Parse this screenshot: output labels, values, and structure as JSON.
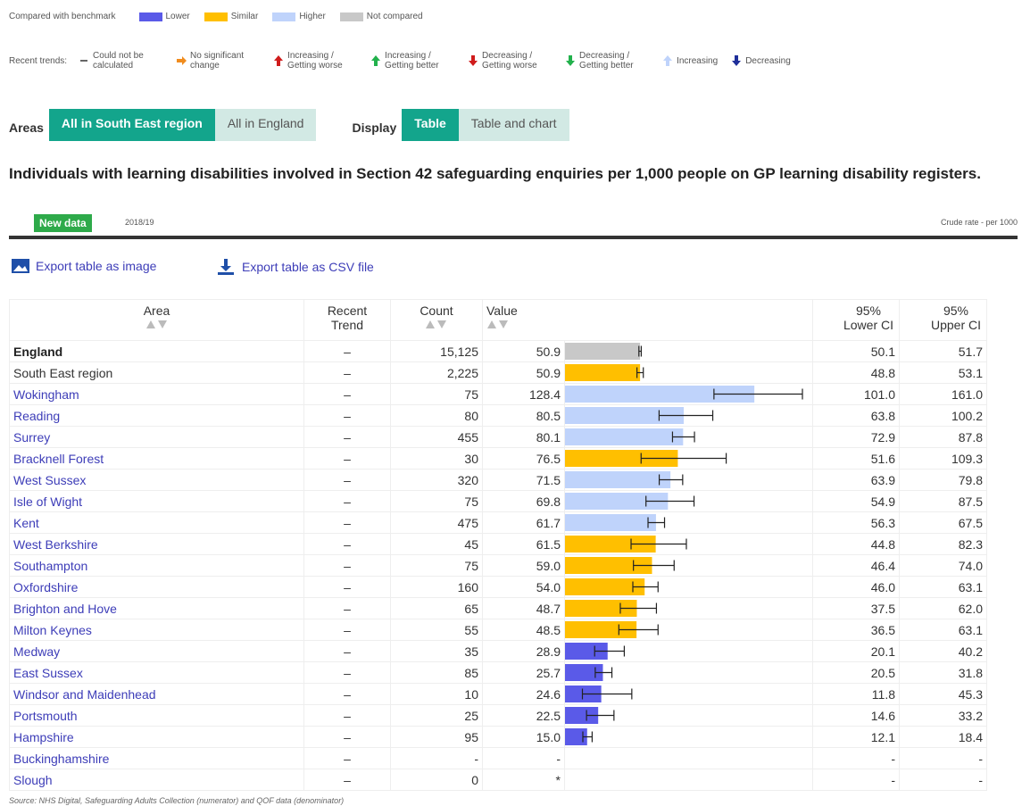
{
  "legend": {
    "benchmark_label": "Compared with benchmark",
    "benchmark": [
      {
        "label": "Lower",
        "color": "#5a5ae8"
      },
      {
        "label": "Similar",
        "color": "#ffbf00"
      },
      {
        "label": "Higher",
        "color": "#bfd3fb"
      },
      {
        "label": "Not compared",
        "color": "#c8c8c8"
      }
    ],
    "trends_label": "Recent trends:",
    "trends": [
      "Could not be calculated",
      "No significant change",
      "Increasing / Getting worse",
      "Increasing / Getting better",
      "Decreasing / Getting worse",
      "Decreasing / Getting better",
      "Increasing",
      "Decreasing"
    ]
  },
  "filters": {
    "areas_label": "Areas",
    "areas": [
      "All in South East region",
      "All in England"
    ],
    "display_label": "Display",
    "display": [
      "Table",
      "Table and chart"
    ]
  },
  "indicator": {
    "title": "Individuals with learning disabilities involved in Section 42 safeguarding enquiries per 1,000 people on GP learning disability registers.",
    "badge": "New data",
    "period": "2018/19",
    "unit": "Crude rate - per 1000"
  },
  "exports": [
    "Export table as image",
    "Export table as CSV file"
  ],
  "table": {
    "columns": [
      "Area",
      "Recent Trend",
      "Count",
      "Value",
      "95% Lower CI",
      "95% Upper CI"
    ],
    "rows": [
      {
        "area": "England",
        "trend": "–",
        "count": 15125,
        "count_label": "15,125",
        "value": 50.9,
        "lower": 50.1,
        "upper": 51.7,
        "benchmark": "Not compared"
      },
      {
        "area": "South East region",
        "trend": "–",
        "count": 2225,
        "count_label": "2,225",
        "value": 50.9,
        "lower": 48.8,
        "upper": 53.1,
        "benchmark": "Similar"
      },
      {
        "area": "Wokingham",
        "trend": "–",
        "count": 75,
        "value": 128.4,
        "lower": 101.0,
        "lower_label": "101.0",
        "upper": 161.0,
        "upper_label": "161.0",
        "benchmark": "Higher"
      },
      {
        "area": "Reading",
        "trend": "–",
        "count": 80,
        "value": 80.5,
        "lower": 63.8,
        "upper": 100.2,
        "benchmark": "Higher"
      },
      {
        "area": "Surrey",
        "trend": "–",
        "count": 455,
        "value": 80.1,
        "lower": 72.9,
        "upper": 87.8,
        "benchmark": "Higher"
      },
      {
        "area": "Bracknell Forest",
        "trend": "–",
        "count": 30,
        "value": 76.5,
        "lower": 51.6,
        "upper": 109.3,
        "benchmark": "Similar"
      },
      {
        "area": "West Sussex",
        "trend": "–",
        "count": 320,
        "value": 71.5,
        "lower": 63.9,
        "upper": 79.8,
        "benchmark": "Higher"
      },
      {
        "area": "Isle of Wight",
        "trend": "–",
        "count": 75,
        "value": 69.8,
        "lower": 54.9,
        "upper": 87.5,
        "benchmark": "Higher"
      },
      {
        "area": "Kent",
        "trend": "–",
        "count": 475,
        "value": 61.7,
        "lower": 56.3,
        "upper": 67.5,
        "benchmark": "Higher"
      },
      {
        "area": "West Berkshire",
        "trend": "–",
        "count": 45,
        "value": 61.5,
        "lower": 44.8,
        "upper": 82.3,
        "benchmark": "Similar"
      },
      {
        "area": "Southampton",
        "trend": "–",
        "count": 75,
        "value": 59.0,
        "value_label": "59.0",
        "lower": 46.4,
        "upper": 74.0,
        "upper_label": "74.0",
        "benchmark": "Similar"
      },
      {
        "area": "Oxfordshire",
        "trend": "–",
        "count": 160,
        "value": 54.0,
        "value_label": "54.0",
        "lower": 46.0,
        "lower_label": "46.0",
        "upper": 63.1,
        "benchmark": "Similar"
      },
      {
        "area": "Brighton and Hove",
        "trend": "–",
        "count": 65,
        "value": 48.7,
        "lower": 37.5,
        "upper": 62.0,
        "upper_label": "62.0",
        "benchmark": "Similar"
      },
      {
        "area": "Milton Keynes",
        "trend": "–",
        "count": 55,
        "value": 48.5,
        "lower": 36.5,
        "upper": 63.1,
        "benchmark": "Similar"
      },
      {
        "area": "Medway",
        "trend": "–",
        "count": 35,
        "value": 28.9,
        "lower": 20.1,
        "upper": 40.2,
        "benchmark": "Lower"
      },
      {
        "area": "East Sussex",
        "trend": "–",
        "count": 85,
        "value": 25.7,
        "lower": 20.5,
        "upper": 31.8,
        "benchmark": "Lower"
      },
      {
        "area": "Windsor and Maidenhead",
        "trend": "–",
        "count": 10,
        "value": 24.6,
        "lower": 11.8,
        "upper": 45.3,
        "benchmark": "Lower"
      },
      {
        "area": "Portsmouth",
        "trend": "–",
        "count": 25,
        "value": 22.5,
        "lower": 14.6,
        "upper": 33.2,
        "benchmark": "Lower"
      },
      {
        "area": "Hampshire",
        "trend": "–",
        "count": 95,
        "value": 15.0,
        "value_label": "15.0",
        "lower": 12.1,
        "upper": 18.4,
        "benchmark": "Lower"
      },
      {
        "area": "Buckinghamshire",
        "trend": "–",
        "count": null,
        "count_label": "-",
        "value": null,
        "value_label": "-",
        "lower": null,
        "lower_label": "-",
        "upper": null,
        "upper_label": "-"
      },
      {
        "area": "Slough",
        "trend": "–",
        "count": 0,
        "value": null,
        "value_label": "*",
        "lower": null,
        "lower_label": "-",
        "upper": null,
        "upper_label": "-"
      }
    ]
  },
  "source": "Source: NHS Digital, Safeguarding Adults Collection (numerator) and QOF data (denominator)"
}
